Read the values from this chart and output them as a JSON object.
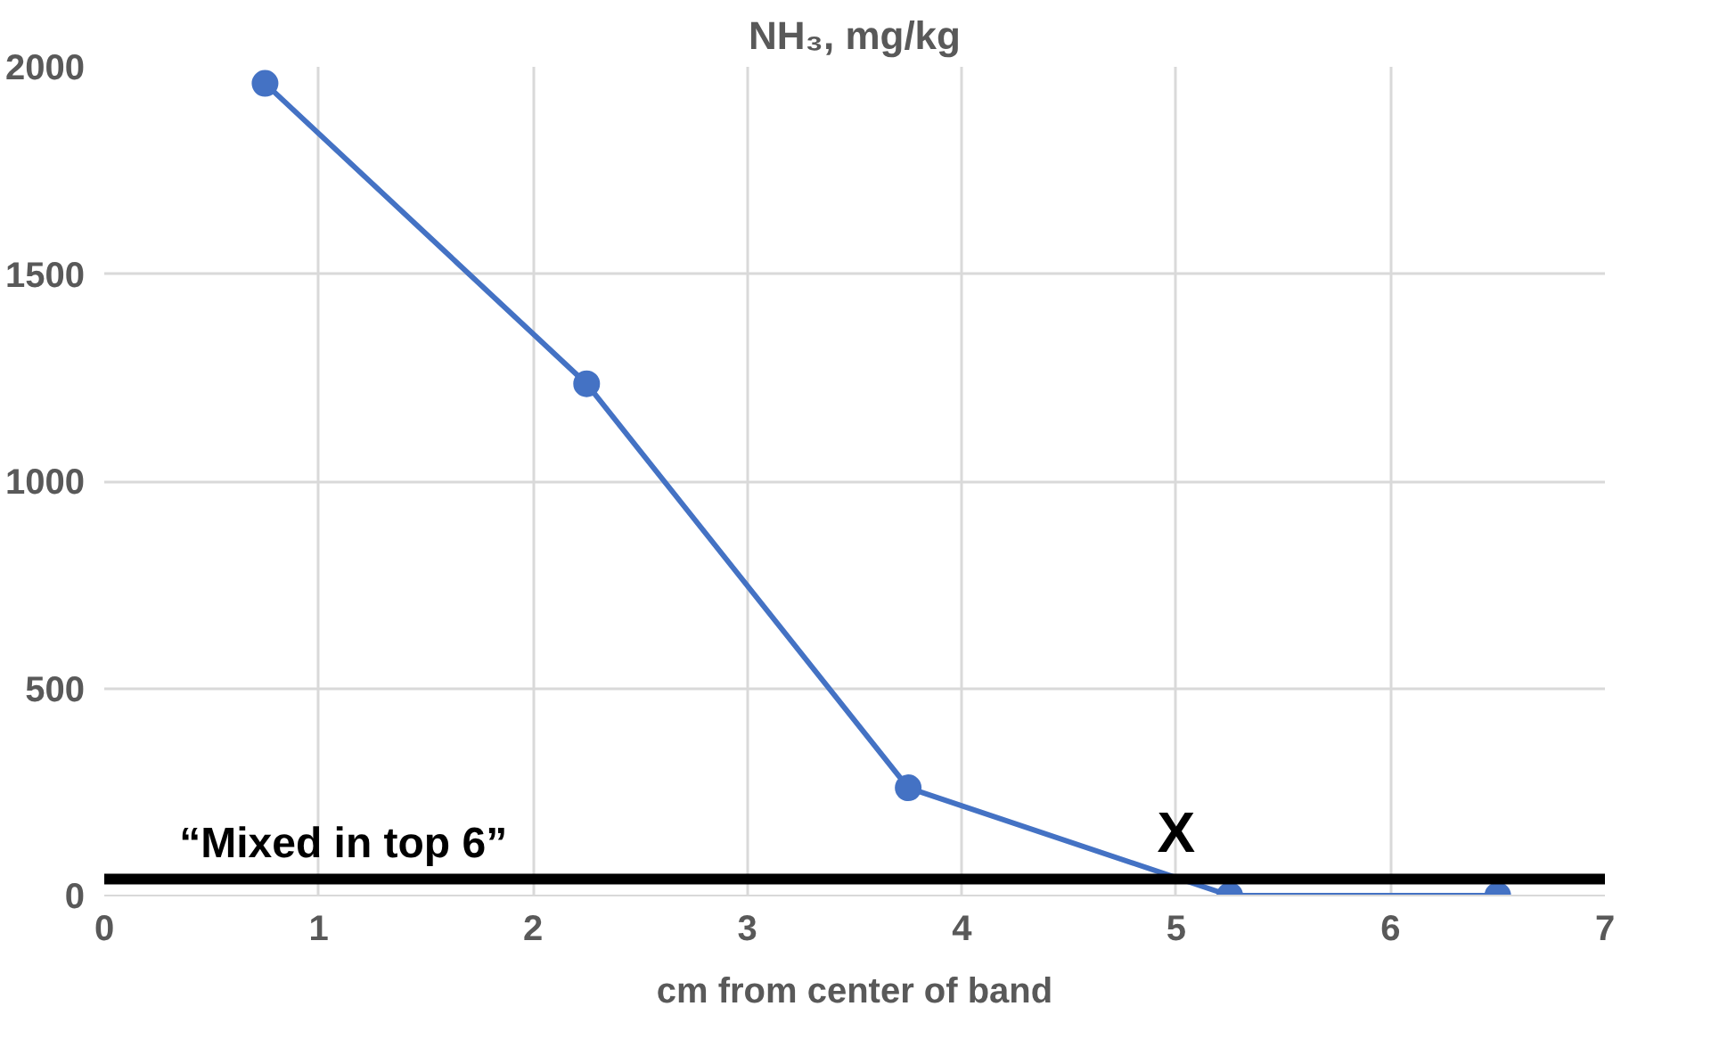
{
  "chart_data": {
    "type": "line",
    "title": "NH₃, mg/kg",
    "xlabel": "cm from center of band",
    "x": [
      0.75,
      2.25,
      3.75,
      5.25,
      6.5
    ],
    "series": [
      {
        "color": "#4472c4",
        "values": [
          1960,
          1235,
          260,
          0,
          0
        ]
      }
    ],
    "xlim": [
      0,
      7
    ],
    "xticks": [
      0,
      1,
      2,
      3,
      4,
      5,
      6,
      7
    ],
    "ylim": [
      0,
      2000
    ],
    "yticks": [
      0,
      500,
      1000,
      1500,
      2000
    ],
    "grid": true,
    "marker": "circle",
    "line_style": "solid",
    "ref_lines": [
      {
        "axis": "y",
        "value": 40,
        "label": "“Mixed in top 6”",
        "color": "#000000"
      }
    ],
    "annotations": [
      {
        "text": "X",
        "x": 5,
        "y": 40
      }
    ]
  }
}
